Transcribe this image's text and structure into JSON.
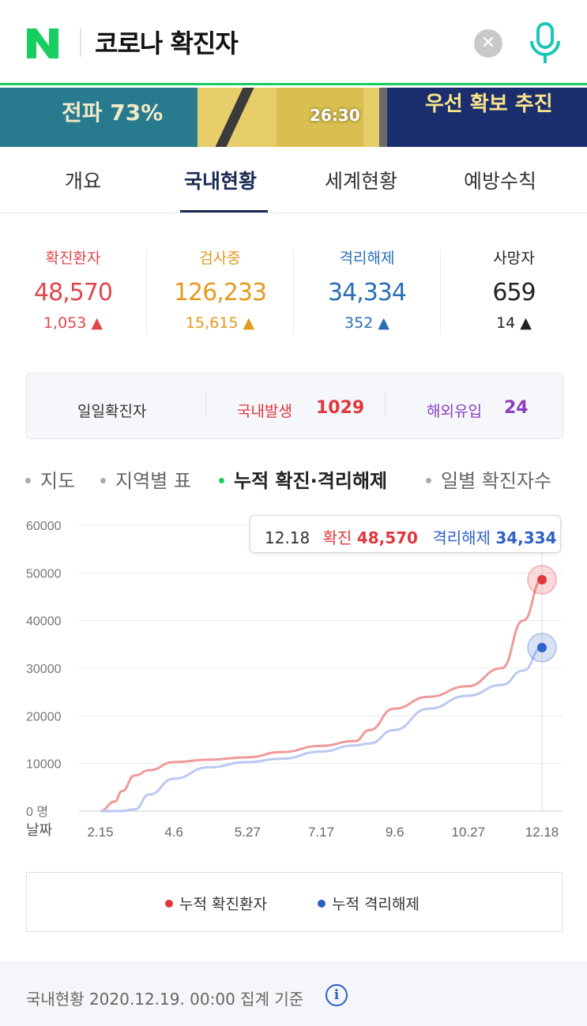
{
  "search": {
    "query": "코로나 확진자"
  },
  "video": {
    "left_text": "전파 73%",
    "right_text": "우선 확보 추진",
    "timecode": "26:30"
  },
  "tabs": [
    {
      "label": "개요",
      "active": false
    },
    {
      "label": "국내현황",
      "active": true
    },
    {
      "label": "세계현황",
      "active": false
    },
    {
      "label": "예방수칙",
      "active": false
    }
  ],
  "stats": [
    {
      "label": "확진환자",
      "value": "48,570",
      "delta": "1,053",
      "color": "#e0464d"
    },
    {
      "label": "검사중",
      "value": "126,233",
      "delta": "15,615",
      "color": "#e39a1f"
    },
    {
      "label": "격리해제",
      "value": "34,334",
      "delta": "352",
      "color": "#2a6fb5"
    },
    {
      "label": "사망자",
      "value": "659",
      "delta": "14",
      "color": "#222222"
    }
  ],
  "daily": {
    "title": "일일확진자",
    "domestic_label": "국내발생",
    "domestic_value": "1029",
    "overseas_label": "해외유입",
    "overseas_value": "24"
  },
  "chart_menu": [
    {
      "label": "지도",
      "active": false
    },
    {
      "label": "지역별 표",
      "active": false
    },
    {
      "label": "누적 확진·격리해제",
      "active": true
    },
    {
      "label": "일별 확진자수",
      "active": false
    }
  ],
  "tooltip": {
    "date": "12.18",
    "confirmed_label": "확진",
    "confirmed_value": "48,570",
    "released_label": "격리해제",
    "released_value": "34,334"
  },
  "chart_data": {
    "type": "line",
    "y_ticks": [
      "60000",
      "50000",
      "40000",
      "30000",
      "20000",
      "10000",
      "0 명"
    ],
    "x_axis_label": "날짜",
    "x_ticks": [
      "2.15",
      "4.6",
      "5.27",
      "7.17",
      "9.6",
      "10.27",
      "12.18"
    ],
    "ylim": [
      0,
      60000
    ],
    "x": [
      "2.15",
      "2.25",
      "3.01",
      "3.10",
      "3.20",
      "4.06",
      "4.30",
      "5.27",
      "6.20",
      "7.17",
      "8.10",
      "8.20",
      "9.06",
      "9.30",
      "10.27",
      "11.20",
      "12.05",
      "12.18"
    ],
    "series": [
      {
        "name": "누적 확진환자",
        "color": "#ef9a9a",
        "marker": "#e0373f",
        "values": [
          28,
          2000,
          4200,
          7500,
          8600,
          10300,
          10800,
          11300,
          12400,
          13700,
          14700,
          17000,
          21500,
          24000,
          26200,
          30000,
          40000,
          48570
        ]
      },
      {
        "name": "누적 격리해제",
        "color": "#bcc8f2",
        "marker": "#2f60c9",
        "values": [
          16,
          16,
          30,
          400,
          3500,
          6800,
          9200,
          10300,
          11000,
          12500,
          13800,
          14200,
          17000,
          21500,
          24200,
          26500,
          29500,
          34334
        ]
      }
    ],
    "grid": true,
    "legend_position": "bottom"
  },
  "footer": {
    "text": "국내현황 2020.12.19. 00:00 집계 기준"
  }
}
